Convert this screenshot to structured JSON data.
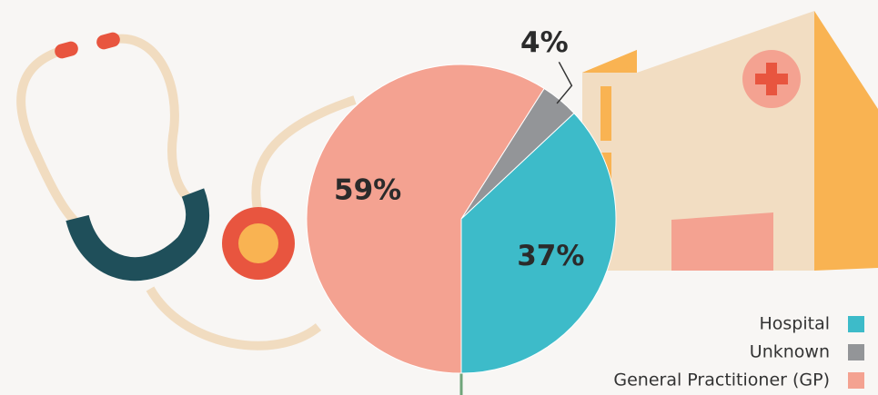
{
  "chart_data": {
    "type": "pie",
    "categories": [
      "Hospital",
      "Unknown",
      "General Practitioner (GP)"
    ],
    "values": [
      37,
      4,
      59
    ],
    "value_labels": [
      "37%",
      "4%",
      "59%"
    ],
    "colors": [
      "#3dbbc9",
      "#939598",
      "#f4a291"
    ]
  }
}
